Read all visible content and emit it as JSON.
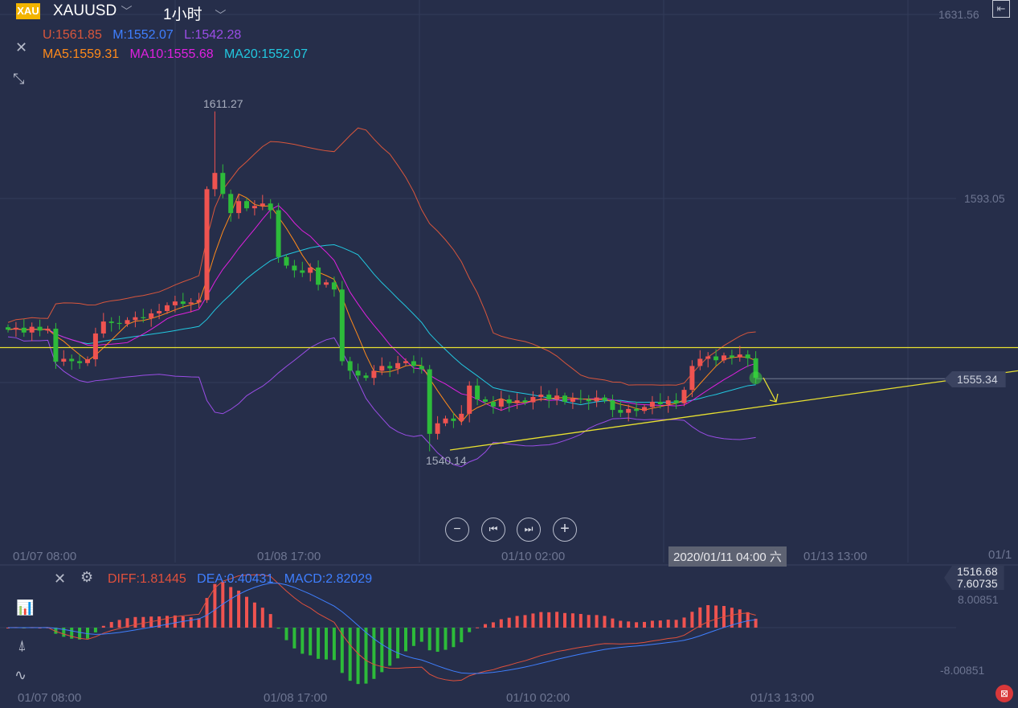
{
  "header": {
    "symbol_badge": "XAU",
    "symbol": "XAUUSD",
    "interval": "1小时"
  },
  "boll_legend": {
    "u": "U:1561.85",
    "m": "M:1552.07",
    "l": "L:1542.28"
  },
  "ma_legend": {
    "ma5": "MA5:1559.31",
    "ma10": "MA10:1555.68",
    "ma20": "MA20:1552.07"
  },
  "price_axis": {
    "top": "1631.56",
    "mid": "1593.05",
    "current": "1555.34",
    "bottom": "1516.68"
  },
  "annotations": {
    "high": "1611.27",
    "low": "1540.14"
  },
  "time_axis": [
    "01/07 08:00",
    "01/08 17:00",
    "01/10 02:00",
    "01/13 13:00",
    "01/1"
  ],
  "crosshair_label": "2020/01/11 04:00 六",
  "controls": {
    "zoom_out": "−",
    "prev": "⏮",
    "next": "⏭",
    "zoom_in": "+"
  },
  "macd": {
    "diff": "DIFF:1.81445",
    "dea": "DEA:0.40431",
    "macd": "MACD:2.82029",
    "axis_top": "7.60735",
    "axis_top2": "8.00851",
    "axis_bottom": "-8.00851"
  },
  "colors": {
    "bg": "#262e4a",
    "up": "#ef5350",
    "down": "#2dbb3a",
    "upper": "#d8563c",
    "mid": "#3f7fff",
    "lower": "#9a4de6",
    "ma5": "#ff8a1a",
    "ma10": "#e020e0",
    "ma20": "#22c8e0",
    "trend": "#e8e030"
  },
  "chart_data": {
    "type": "candlestick",
    "title": "XAUUSD 1小时",
    "ylim": [
      1516.68,
      1631.56
    ],
    "closes": [
      1565.6,
      1566,
      1565,
      1566.2,
      1565.4,
      1565.8,
      1558.9,
      1559.5,
      1559,
      1558.6,
      1559.4,
      1564.8,
      1567.3,
      1567,
      1566.8,
      1567.6,
      1568.2,
      1568,
      1569,
      1569.5,
      1570.7,
      1571.5,
      1571,
      1571.3,
      1571.8,
      1595,
      1598.4,
      1594,
      1590,
      1592.5,
      1591,
      1591.5,
      1592,
      1590.6,
      1580.8,
      1579,
      1578,
      1577.5,
      1578.6,
      1575,
      1575.5,
      1574,
      1559,
      1557,
      1556,
      1555.5,
      1557,
      1558,
      1557.5,
      1558.6,
      1559,
      1558,
      1557.3,
      1543.8,
      1546,
      1547,
      1546.5,
      1548,
      1553.9,
      1551,
      1550.5,
      1549.5,
      1551,
      1550.2,
      1550.8,
      1550.4,
      1551.5,
      1552,
      1551,
      1551.8,
      1550.5,
      1551.2,
      1551,
      1550.6,
      1551.4,
      1550.8,
      1548.8,
      1548.2,
      1549,
      1548.6,
      1549.4,
      1550.5,
      1550,
      1550.8,
      1550.2,
      1553,
      1558,
      1559.5,
      1560,
      1559.2,
      1560.2,
      1559.8,
      1560.4,
      1559.6,
      1555.5
    ],
    "high_point": 1611.27,
    "low_point": 1540.14,
    "current": 1555.34
  }
}
